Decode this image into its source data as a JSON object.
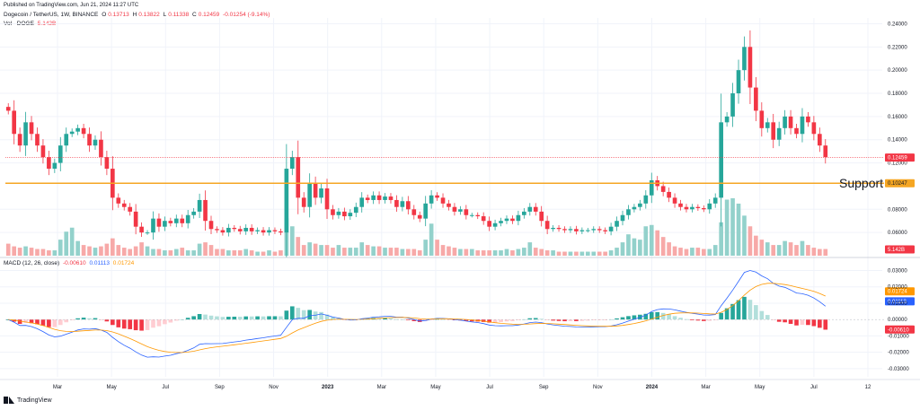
{
  "header": {
    "published": "Published on TradingView.com, Jun 21, 2024 11:27 UTC",
    "symbol": "Dogecoin / TetherUS, 1W, BINANCE",
    "o_label": "O",
    "o_value": "0.13713",
    "h_label": "H",
    "h_value": "0.13822",
    "l_label": "L",
    "l_value": "0.11338",
    "c_label": "C",
    "c_value": "0.12459",
    "change": "-0.01254 (-9.14%)",
    "vol_label": "Vol · DOGE",
    "vol_value": "5.142B"
  },
  "macd_header": {
    "label": "MACD (12, 26, close)",
    "hist": "-0.00610",
    "macd": "0.01113",
    "signal": "0.01724"
  },
  "logo_text": "TradingView",
  "colors": {
    "up": "#26a69a",
    "down": "#f23645",
    "vol_up": "#93d1cb",
    "vol_down": "#f7a9a8",
    "macd": "#2962ff",
    "signal": "#ff9800",
    "support": "#f5a623",
    "grid": "#f0f3fa"
  },
  "chart_data": [
    {
      "type": "candlestick",
      "title": "Dogecoin / TetherUS, 1W, BINANCE",
      "y_ticks": [
        "0.24000",
        "0.22000",
        "0.20000",
        "0.18000",
        "0.16000",
        "0.14000",
        "0.12000",
        "0.08000",
        "0.06000"
      ],
      "ylim": [
        0.04,
        0.245
      ],
      "x_ticks": [
        "Mar",
        "May",
        "Jul",
        "Sep",
        "Nov",
        "2023",
        "Mar",
        "May",
        "Jul",
        "Sep",
        "Nov",
        "2024",
        "Mar",
        "May",
        "Jul",
        "12"
      ],
      "support": {
        "label": "Support",
        "value": 0.10247,
        "value_text": "0.10247"
      },
      "last_price": {
        "value": 0.12459,
        "value_text": "0.12459"
      },
      "volume_last": {
        "value_text": "5.142B"
      },
      "closes": [
        0.165,
        0.145,
        0.135,
        0.155,
        0.145,
        0.135,
        0.125,
        0.115,
        0.12,
        0.135,
        0.145,
        0.147,
        0.15,
        0.145,
        0.135,
        0.14,
        0.125,
        0.115,
        0.09,
        0.085,
        0.082,
        0.078,
        0.065,
        0.06,
        0.06,
        0.072,
        0.065,
        0.07,
        0.068,
        0.072,
        0.068,
        0.075,
        0.078,
        0.088,
        0.07,
        0.063,
        0.062,
        0.06,
        0.064,
        0.063,
        0.061,
        0.064,
        0.061,
        0.062,
        0.06,
        0.062,
        0.061,
        0.06,
        0.115,
        0.125,
        0.09,
        0.082,
        0.102,
        0.09,
        0.098,
        0.08,
        0.075,
        0.078,
        0.074,
        0.077,
        0.082,
        0.09,
        0.088,
        0.092,
        0.088,
        0.091,
        0.088,
        0.082,
        0.087,
        0.08,
        0.075,
        0.072,
        0.085,
        0.092,
        0.09,
        0.085,
        0.082,
        0.078,
        0.08,
        0.075,
        0.075,
        0.074,
        0.07,
        0.065,
        0.068,
        0.07,
        0.072,
        0.07,
        0.075,
        0.078,
        0.082,
        0.078,
        0.07,
        0.063,
        0.064,
        0.063,
        0.062,
        0.063,
        0.061,
        0.062,
        0.062,
        0.063,
        0.062,
        0.061,
        0.065,
        0.07,
        0.075,
        0.08,
        0.082,
        0.085,
        0.092,
        0.105,
        0.1,
        0.095,
        0.09,
        0.085,
        0.082,
        0.08,
        0.082,
        0.081,
        0.08,
        0.085,
        0.09,
        0.155,
        0.16,
        0.18,
        0.2,
        0.22,
        0.185,
        0.165,
        0.15,
        0.155,
        0.14,
        0.15,
        0.16,
        0.15,
        0.145,
        0.16,
        0.155,
        0.145,
        0.135,
        0.125
      ],
      "volume": [
        0.9,
        0.7,
        0.6,
        0.7,
        0.6,
        0.5,
        0.5,
        0.4,
        0.4,
        1.2,
        1.8,
        2.1,
        1.1,
        0.8,
        0.7,
        0.6,
        0.7,
        0.9,
        1.3,
        0.8,
        0.6,
        0.5,
        0.7,
        1.0,
        0.7,
        0.5,
        0.5,
        0.4,
        0.4,
        0.5,
        0.6,
        0.4,
        0.4,
        0.9,
        1.0,
        0.8,
        0.5,
        0.5,
        0.4,
        0.4,
        0.4,
        0.5,
        0.4,
        0.3,
        0.3,
        0.4,
        0.3,
        0.4,
        2.8,
        2.2,
        1.4,
        0.8,
        1.0,
        0.9,
        0.8,
        0.8,
        0.6,
        0.8,
        0.6,
        0.6,
        0.6,
        1.0,
        0.8,
        0.7,
        0.7,
        0.6,
        0.6,
        0.6,
        0.5,
        0.5,
        0.5,
        0.4,
        1.2,
        2.4,
        1.2,
        0.8,
        0.7,
        0.6,
        0.5,
        0.5,
        0.5,
        0.4,
        0.4,
        0.4,
        0.4,
        0.4,
        0.5,
        0.4,
        0.5,
        0.6,
        1.0,
        0.6,
        0.5,
        0.4,
        0.4,
        0.3,
        0.3,
        0.3,
        0.3,
        0.3,
        0.3,
        0.3,
        0.3,
        0.3,
        0.4,
        0.6,
        1.0,
        1.6,
        1.3,
        1.2,
        2.2,
        2.3,
        1.9,
        1.4,
        1.0,
        0.7,
        0.6,
        0.5,
        0.6,
        0.6,
        0.5,
        0.5,
        0.8,
        2.5,
        4.2,
        4.3,
        3.9,
        3.0,
        2.2,
        1.5,
        1.2,
        1.0,
        0.8,
        0.8,
        1.1,
        1.0,
        0.8,
        1.1,
        0.8,
        0.6,
        0.5,
        0.5
      ]
    },
    {
      "type": "macd",
      "title": "MACD (12, 26, close)",
      "y_ticks": [
        "0.03000",
        "0.02000",
        "0.01000",
        "-0.01000",
        "-0.02000",
        "-0.03000"
      ],
      "ylim": [
        -0.035,
        0.033
      ],
      "zero_text": "0.00000",
      "macd_last": "0.01113",
      "signal_last": "0.01724",
      "hist_last": "-0.00610"
    }
  ]
}
